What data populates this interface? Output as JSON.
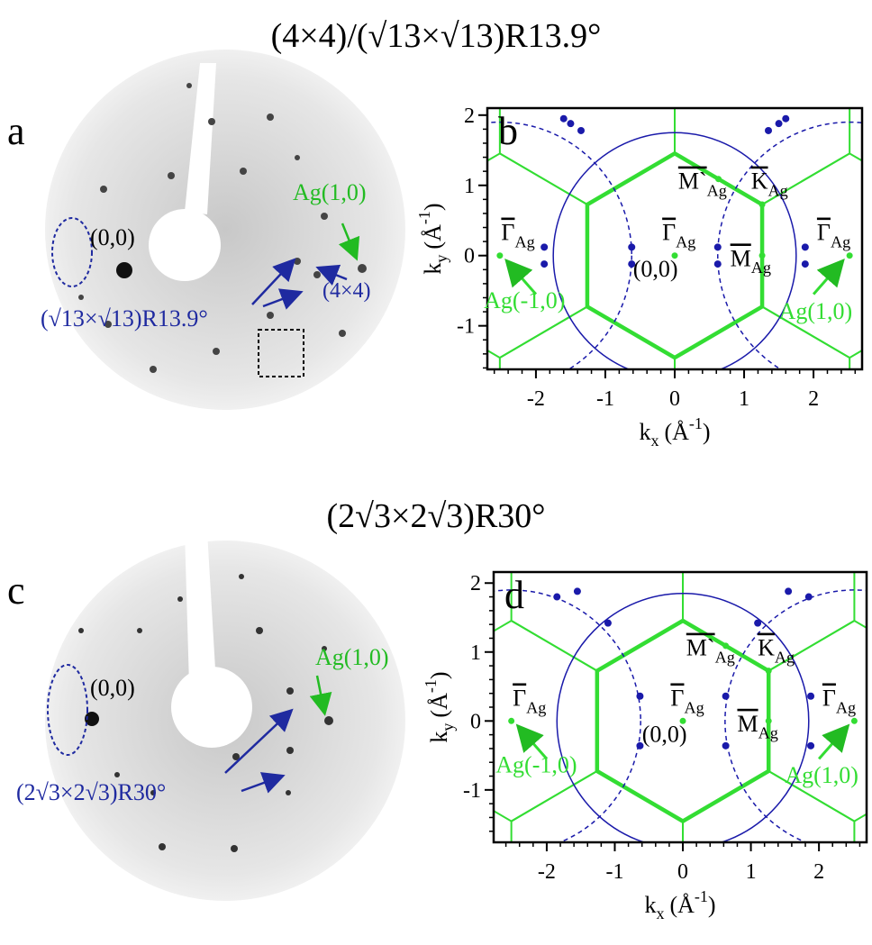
{
  "titles": [
    "(4×4)/(√13×√13)R13.9°",
    "(2√3×2√3)R30°"
  ],
  "panel_a": {
    "letter": "a",
    "origin": "(0,0)",
    "ag": "Ag(1,0)",
    "blue": "(√13×√13)R13.9°",
    "small": "(4×4)"
  },
  "panel_c": {
    "letter": "c",
    "origin": "(0,0)",
    "ag": "Ag(1,0)",
    "blue": "(2√3×2√3)R30°"
  },
  "panel_b": {
    "letter": "b",
    "xlim": [
      -2.7,
      2.7
    ],
    "ylim": [
      -1.62,
      2.1
    ],
    "xticks": [
      -2,
      -1,
      0,
      1,
      2
    ],
    "yticks": [
      -1,
      0,
      1,
      2
    ],
    "xlabel": {
      "symbol": "k",
      "sub": "x",
      "unit": "(Å",
      "sup": "-1",
      "close": ")"
    },
    "ylabel": {
      "symbol": "k",
      "sub": "y",
      "unit": "(Å",
      "sup": "-1",
      "close": ")"
    },
    "gamma": {
      "main": "Γ",
      "sub": "Ag"
    },
    "m_prime": {
      "main": "M`",
      "sub": "Ag"
    },
    "k": {
      "main": "K",
      "sub": "Ag"
    },
    "m": {
      "main": "M",
      "sub": "Ag"
    },
    "origin": "(0,0)",
    "ag_minus": "Ag(-1,0)",
    "ag_plus": "Ag(1,0)"
  },
  "panel_d": {
    "letter": "d",
    "xlim": [
      -2.78,
      2.7
    ],
    "ylim": [
      -1.76,
      2.16
    ],
    "xticks": [
      -2,
      -1,
      0,
      1,
      2
    ],
    "yticks": [
      -1,
      0,
      1,
      2
    ],
    "xlabel": {
      "symbol": "k",
      "sub": "x",
      "unit": "(Å",
      "sup": "-1",
      "close": ")"
    },
    "ylabel": {
      "symbol": "k",
      "sub": "y",
      "unit": "(Å",
      "sup": "-1",
      "close": ")"
    },
    "gamma": {
      "main": "Γ",
      "sub": "Ag"
    },
    "m_prime": {
      "main": "M`",
      "sub": "Ag"
    },
    "k": {
      "main": "K",
      "sub": "Ag"
    },
    "m": {
      "main": "M",
      "sub": "Ag"
    },
    "origin": "(0,0)",
    "ag_minus": "Ag(-1,0)",
    "ag_plus": "Ag(1,0)"
  }
}
